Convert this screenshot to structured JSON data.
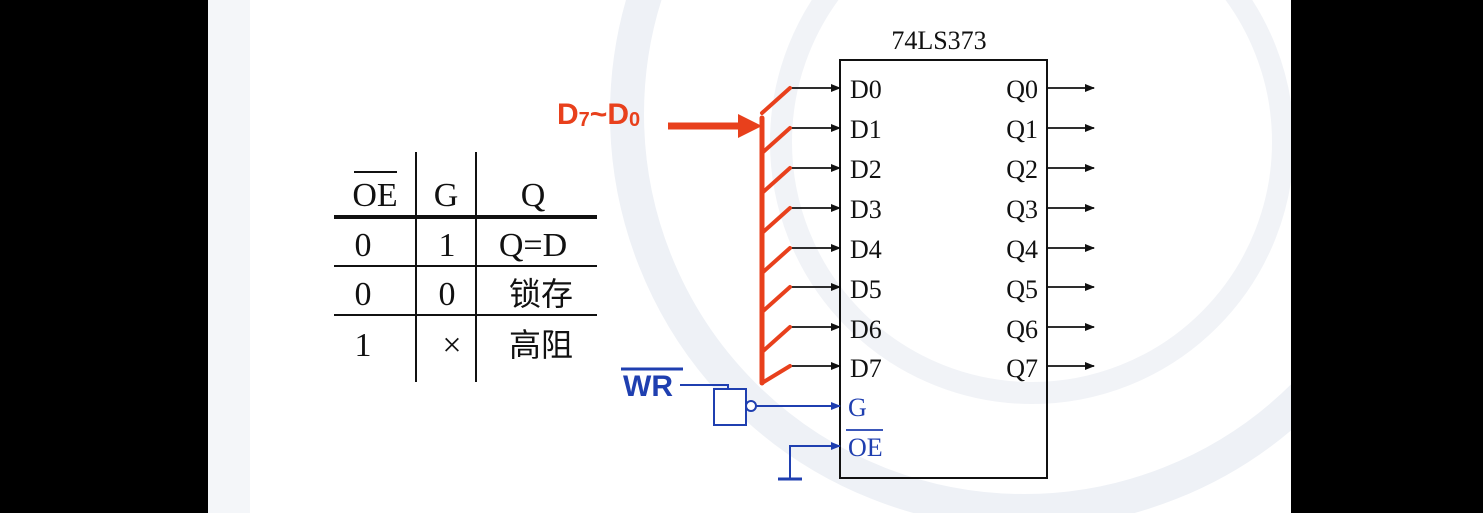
{
  "colors": {
    "bus": "#e8401c",
    "wr": "#1f3fb0",
    "line": "#111111"
  },
  "truth_table": {
    "headers": [
      "OE",
      "G",
      "Q"
    ],
    "rows": [
      [
        "0",
        "1",
        "Q=D"
      ],
      [
        "0",
        "0",
        "锁存"
      ],
      [
        "1",
        "×",
        "高阻"
      ]
    ]
  },
  "chip": {
    "name": "74LS373",
    "inputs": [
      "D0",
      "D1",
      "D2",
      "D3",
      "D4",
      "D5",
      "D6",
      "D7"
    ],
    "outputs": [
      "Q0",
      "Q1",
      "Q2",
      "Q3",
      "Q4",
      "Q5",
      "Q6",
      "Q7"
    ],
    "control": {
      "g": "G",
      "oe": "OE"
    }
  },
  "bus": {
    "label_main": "D",
    "label_sub1": "7",
    "label_tilde": "~D",
    "label_sub2": "0"
  },
  "wr": {
    "label": "WR"
  }
}
